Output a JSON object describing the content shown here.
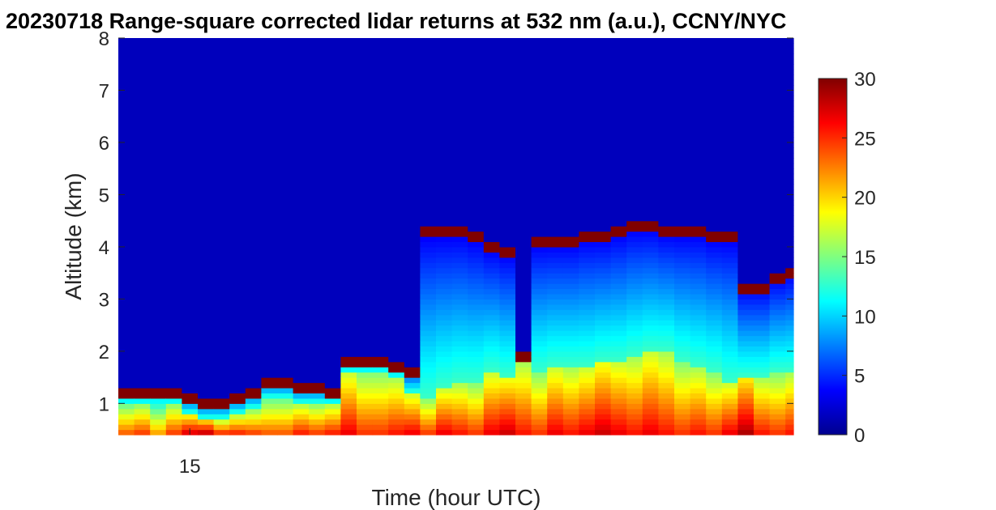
{
  "chart_data": {
    "type": "heatmap",
    "title": "20230718  Range-square corrected lidar returns at 532 nm (a.u.), CCNY/NYC",
    "xlabel": "Time (hour UTC)",
    "ylabel": "Altitude (km)",
    "x_ticks": [
      {
        "value": 15,
        "label": "15"
      }
    ],
    "y_ticks": [
      {
        "value": 1,
        "label": "1"
      },
      {
        "value": 2,
        "label": "2"
      },
      {
        "value": 3,
        "label": "3"
      },
      {
        "value": 4,
        "label": "4"
      },
      {
        "value": 5,
        "label": "5"
      },
      {
        "value": 6,
        "label": "6"
      },
      {
        "value": 7,
        "label": "7"
      },
      {
        "value": 8,
        "label": "8"
      }
    ],
    "xlim": [
      14.1,
      22.6
    ],
    "ylim": [
      0.4,
      8.0
    ],
    "colormap": "jet",
    "clim": [
      0,
      30
    ],
    "colorbar_ticks": [
      {
        "value": 0,
        "label": "0"
      },
      {
        "value": 5,
        "label": "5"
      },
      {
        "value": 10,
        "label": "10"
      },
      {
        "value": 15,
        "label": "15"
      },
      {
        "value": 20,
        "label": "20"
      },
      {
        "value": 25,
        "label": "25"
      },
      {
        "value": 30,
        "label": "30"
      }
    ],
    "profiles": {
      "time_hours": [
        14.1,
        14.3,
        14.5,
        14.7,
        14.9,
        15.1,
        15.3,
        15.5,
        15.7,
        15.9,
        16.1,
        16.3,
        16.5,
        16.7,
        16.9,
        17.1,
        17.3,
        17.5,
        17.7,
        17.9,
        18.1,
        18.3,
        18.5,
        18.7,
        18.9,
        19.1,
        19.3,
        19.5,
        19.7,
        19.9,
        20.1,
        20.3,
        20.5,
        20.7,
        20.9,
        21.1,
        21.3,
        21.5,
        21.7,
        21.9,
        22.1,
        22.3,
        22.5
      ],
      "top_layer_km": [
        1.3,
        1.3,
        1.3,
        1.3,
        1.2,
        1.1,
        1.1,
        1.2,
        1.3,
        1.5,
        1.5,
        1.4,
        1.4,
        1.3,
        1.9,
        1.9,
        1.9,
        1.8,
        1.7,
        4.4,
        4.4,
        4.4,
        4.3,
        4.1,
        4.0,
        2.0,
        4.2,
        4.2,
        4.2,
        4.3,
        4.3,
        4.4,
        4.5,
        4.5,
        4.4,
        4.4,
        4.4,
        4.3,
        4.3,
        3.3,
        3.3,
        3.5,
        3.6
      ],
      "mixed_layer_km": [
        1.0,
        1.0,
        1.0,
        1.0,
        0.8,
        0.7,
        0.7,
        0.8,
        0.9,
        1.1,
        1.1,
        1.0,
        1.0,
        1.0,
        1.6,
        1.6,
        1.6,
        1.5,
        1.2,
        1.1,
        1.3,
        1.4,
        1.4,
        1.6,
        1.5,
        1.8,
        1.6,
        1.7,
        1.7,
        1.7,
        1.8,
        1.8,
        1.9,
        2.0,
        2.0,
        1.8,
        1.7,
        1.6,
        1.4,
        1.5,
        1.5,
        1.6,
        1.6
      ],
      "surface_value": [
        24,
        25,
        22,
        25,
        28,
        29,
        26,
        26,
        25,
        24,
        24,
        26,
        25,
        26,
        27,
        25,
        25,
        26,
        27,
        25,
        27,
        26,
        25,
        27,
        28,
        26,
        25,
        27,
        26,
        27,
        28,
        27,
        26,
        27,
        26,
        25,
        26,
        25,
        27,
        29,
        26,
        25,
        26
      ]
    },
    "grid": false
  }
}
